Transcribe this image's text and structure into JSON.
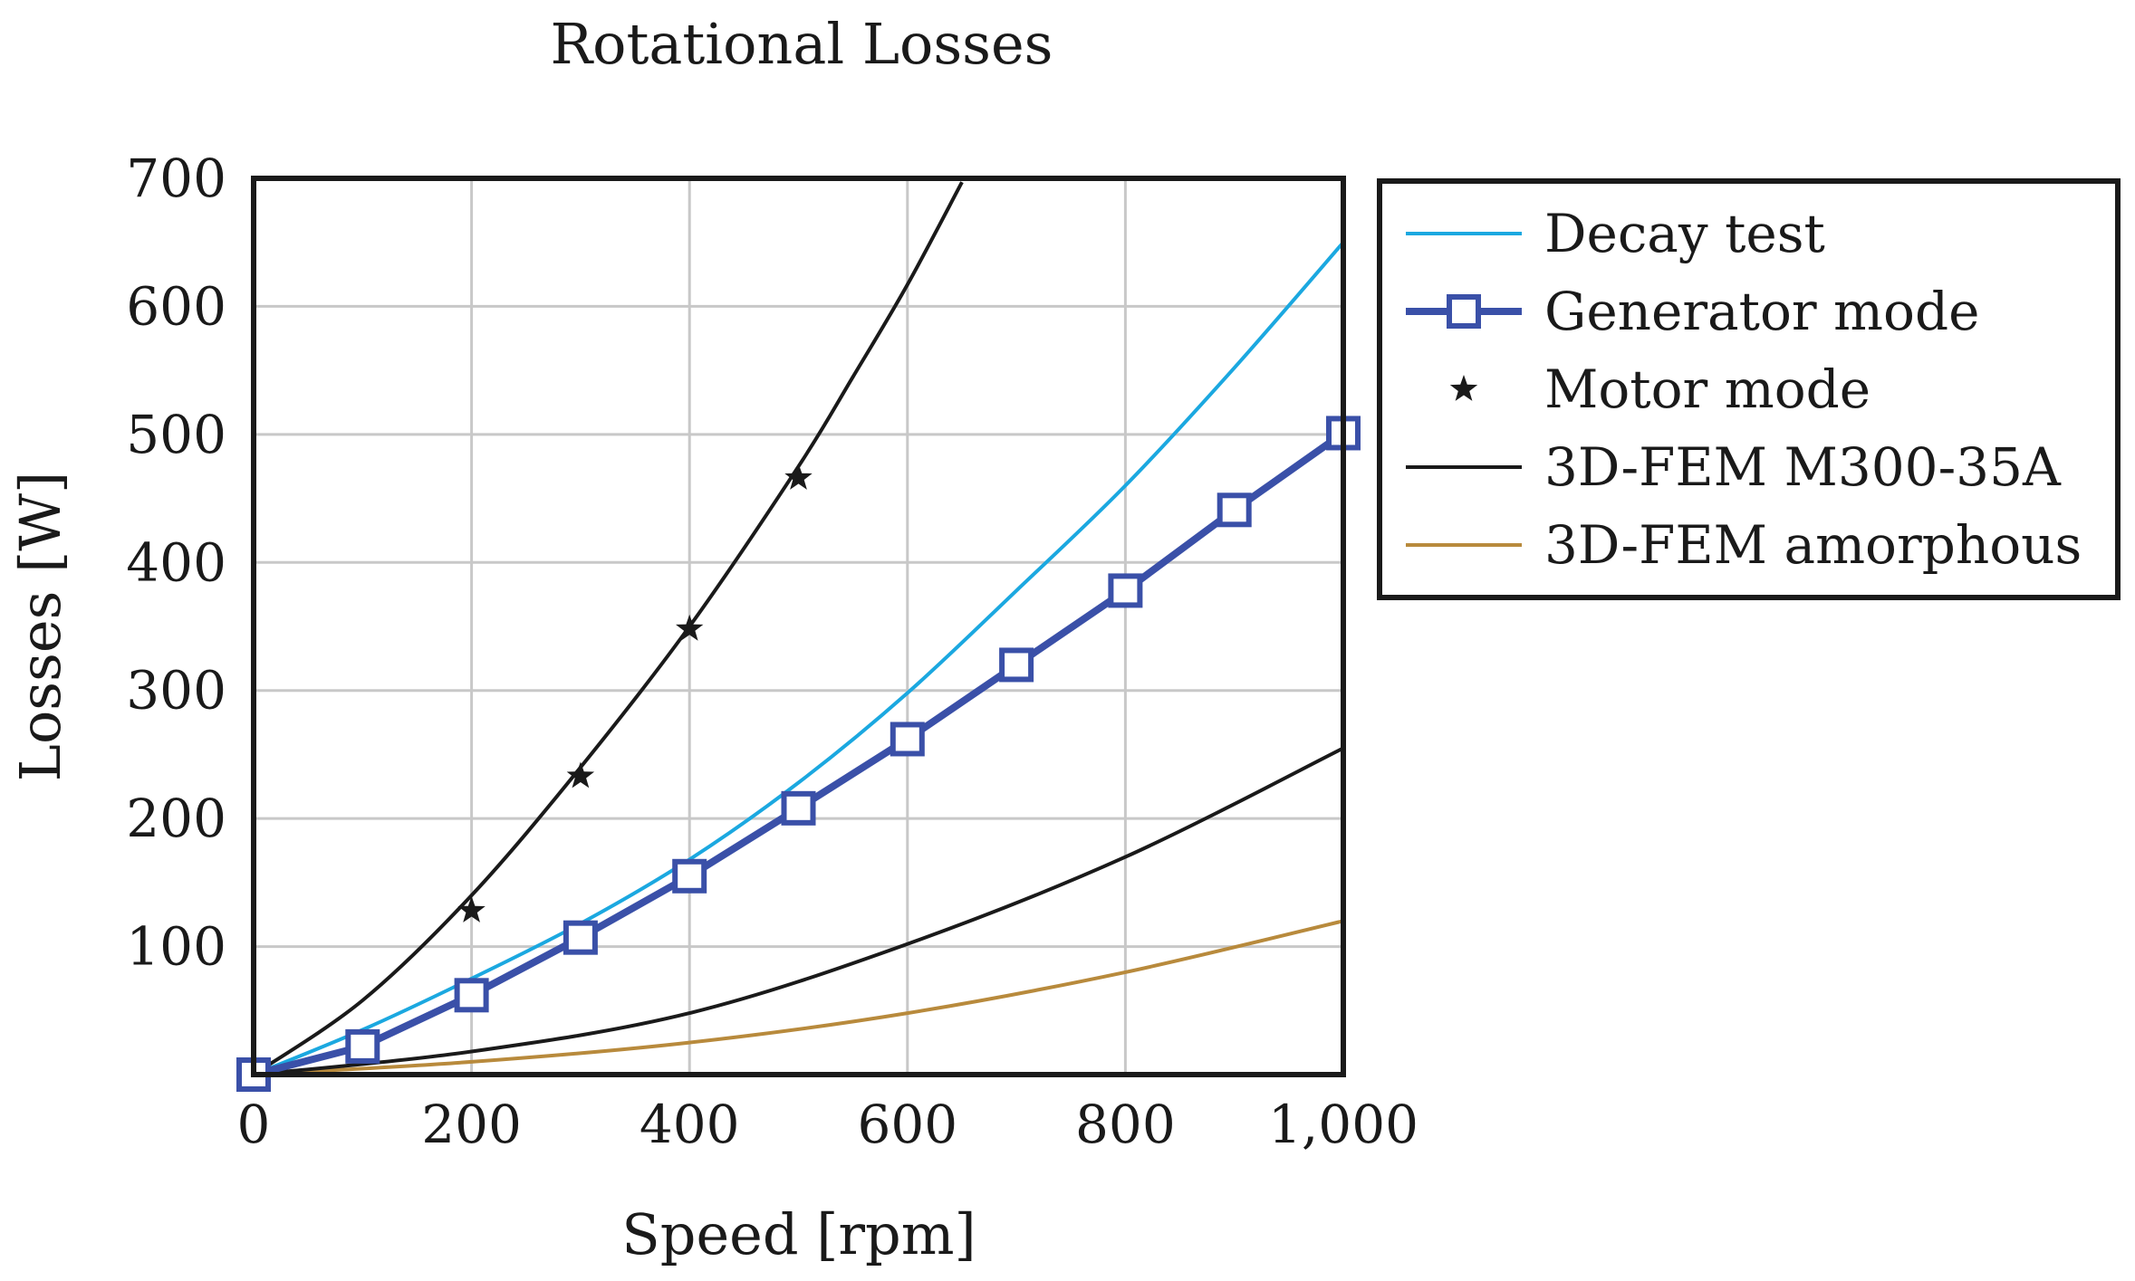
{
  "chart_data": {
    "type": "line",
    "title": "Rotational Losses",
    "xlabel": "Speed [rpm]",
    "ylabel": "Losses [W]",
    "xlim": [
      0,
      1000
    ],
    "ylim": [
      0,
      700
    ],
    "xticks": [
      0,
      200,
      400,
      600,
      800,
      1000
    ],
    "xtick_labels": [
      "0",
      "200",
      "400",
      "600",
      "800",
      "1,000"
    ],
    "yticks": [
      100,
      200,
      300,
      400,
      500,
      600,
      700
    ],
    "ytick_labels": [
      "100",
      "200",
      "300",
      "400",
      "500",
      "600",
      "700"
    ],
    "grid": true,
    "legend_position": "outside-right-top",
    "series": [
      {
        "name": "Decay test",
        "style": "line",
        "color": "#1ba8e0",
        "x": [
          0,
          100,
          200,
          300,
          400,
          500,
          600,
          700,
          800,
          900,
          1000
        ],
        "y": [
          0,
          35,
          75,
          118,
          168,
          228,
          298,
          378,
          460,
          552,
          650
        ]
      },
      {
        "name": "Generator mode",
        "style": "line+square",
        "color": "#3a50a8",
        "x": [
          0,
          100,
          200,
          300,
          400,
          500,
          600,
          700,
          800,
          900,
          1000
        ],
        "y": [
          0,
          22,
          62,
          107,
          155,
          208,
          262,
          320,
          378,
          441,
          501
        ]
      },
      {
        "name": "Motor mode",
        "style": "star",
        "color": "#1a1a1a",
        "x": [
          200,
          300,
          400,
          500
        ],
        "y": [
          128,
          233,
          348,
          466
        ]
      },
      {
        "name": "3D-FEM M300-35A",
        "style": "line",
        "color": "#1a1a1a",
        "x": [
          0,
          100,
          200,
          300,
          400,
          500,
          550,
          600,
          650
        ],
        "y": [
          0,
          58,
          140,
          240,
          350,
          475,
          545,
          617,
          697
        ],
        "x2": [
          0,
          200,
          400,
          600,
          800,
          1000
        ],
        "y2": [
          0,
          18,
          48,
          102,
          170,
          255
        ]
      },
      {
        "name": "3D-FEM amorphous",
        "style": "line",
        "color": "#b88a3c",
        "x": [
          0,
          200,
          400,
          600,
          800,
          1000
        ],
        "y": [
          0,
          10,
          25,
          48,
          80,
          120
        ]
      }
    ]
  }
}
